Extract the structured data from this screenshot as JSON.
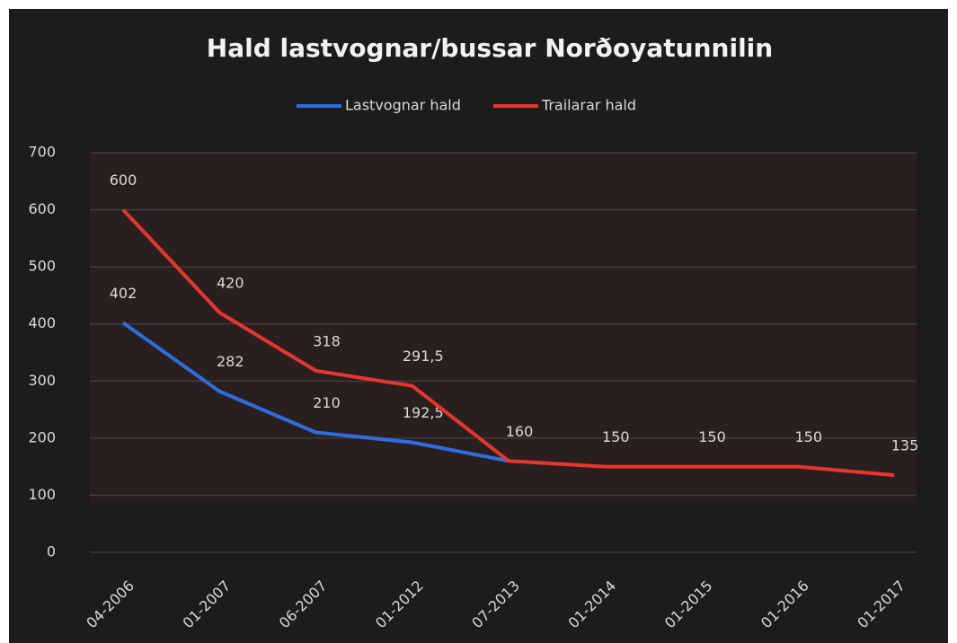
{
  "chart_data": {
    "type": "line",
    "title": "Hald lastvognar/bussar Norðoyatunnilin",
    "categories": [
      "04-2006",
      "01-2007",
      "06-2007",
      "01-2012",
      "07-2013",
      "01-2014",
      "01-2015",
      "01-2016",
      "01-2017"
    ],
    "series": [
      {
        "name": "Lastvognar hald",
        "color": "#2e6de0",
        "values": [
          402,
          282,
          210,
          192.5,
          160,
          null,
          null,
          null,
          null
        ],
        "value_labels": [
          "402",
          "282",
          "210",
          "192,5",
          null,
          null,
          null,
          null,
          null
        ]
      },
      {
        "name": "Trailarar hald",
        "color": "#e8352e",
        "values": [
          600,
          420,
          318,
          291.5,
          160,
          150,
          150,
          150,
          135
        ],
        "value_labels": [
          "600",
          "420",
          "318",
          "291,5",
          "160",
          "150",
          "150",
          "150",
          "135"
        ]
      }
    ],
    "ylim": [
      0,
      700
    ],
    "yticks": [
      0,
      100,
      200,
      300,
      400,
      500,
      600,
      700
    ],
    "grid": true,
    "legend": "top"
  }
}
